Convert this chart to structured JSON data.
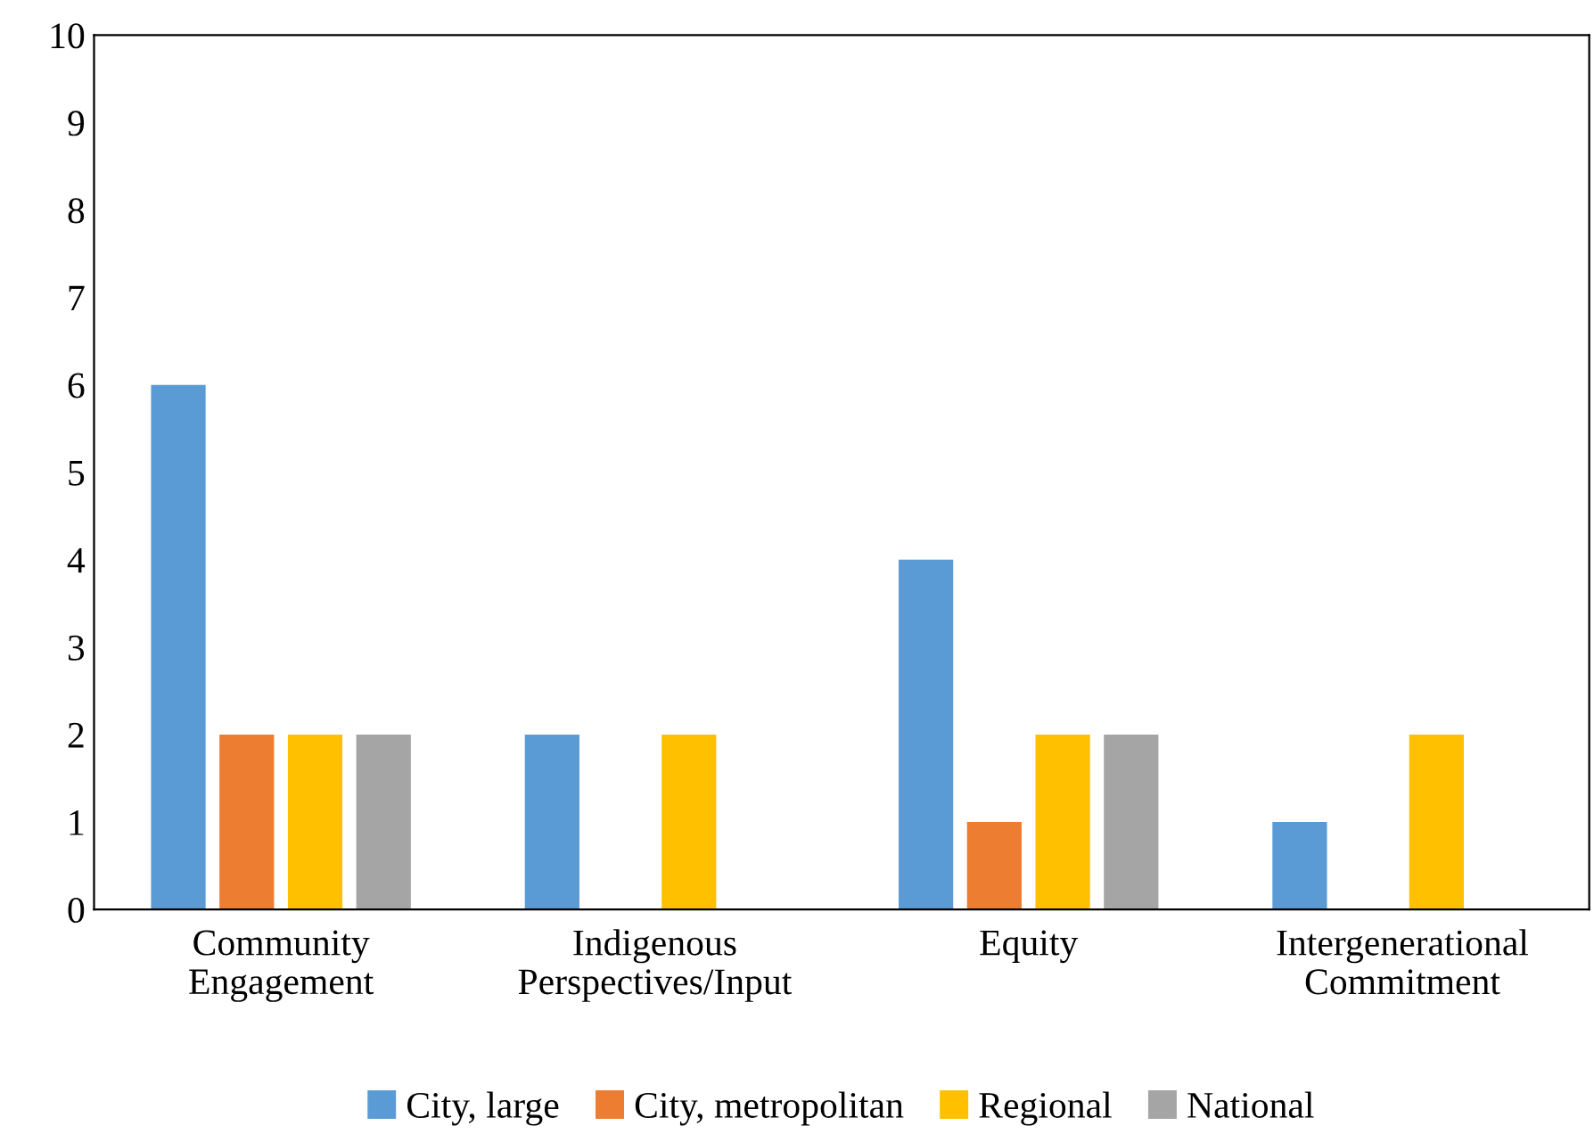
{
  "chart_data": {
    "type": "bar",
    "categories": [
      "Community\nEngagement",
      "Indigenous\nPerspectives/Input",
      "Equity",
      "Intergenerational\nCommitment"
    ],
    "series": [
      {
        "name": "City, large",
        "color": "#5b9bd5",
        "values": [
          6,
          2,
          4,
          1
        ]
      },
      {
        "name": "City, metropolitan",
        "color": "#ed7d31",
        "values": [
          2,
          0,
          1,
          0
        ]
      },
      {
        "name": "Regional",
        "color": "#ffc000",
        "values": [
          2,
          2,
          2,
          2
        ]
      },
      {
        "name": "National",
        "color": "#a5a5a5",
        "values": [
          2,
          0,
          2,
          0
        ]
      }
    ],
    "ylim": [
      0,
      10
    ],
    "yticks": [
      0,
      1,
      2,
      3,
      4,
      5,
      6,
      7,
      8,
      9,
      10
    ],
    "grid": false,
    "legend": "bottom"
  }
}
